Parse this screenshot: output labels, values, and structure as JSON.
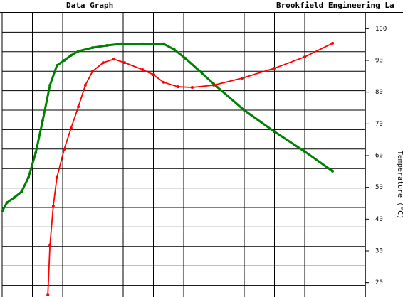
{
  "chart_data": {
    "type": "line",
    "title": "Data Graph",
    "subtitle": "Brookfield Engineering La",
    "y2label": "Temperature (°C)",
    "xlim": [
      0,
      12
    ],
    "y2lim": [
      15,
      105
    ],
    "y2ticks": [
      20,
      30,
      40,
      50,
      60,
      70,
      80,
      90,
      100
    ],
    "grid": true,
    "series": [
      {
        "color": "#008000",
        "axis": "y2",
        "x": [
          0,
          0.16,
          0.4,
          0.64,
          0.87,
          1.11,
          1.34,
          1.58,
          1.81,
          2.05,
          2.28,
          2.52,
          2.99,
          3.46,
          3.93,
          4.64,
          5.34,
          5.69,
          6.05,
          6.52,
          6.99,
          8.0,
          8.99,
          10.0,
          10.92
        ],
        "values": [
          42.5,
          45.2,
          46.8,
          48.6,
          53.1,
          60.9,
          71.0,
          82.2,
          88.4,
          90.0,
          91.6,
          92.9,
          94.0,
          94.7,
          95.2,
          95.2,
          95.2,
          93.4,
          90.7,
          86.7,
          82.6,
          74.3,
          67.6,
          61.3,
          55.1
        ]
      },
      {
        "color": "#ff0000",
        "axis": "y2",
        "x": [
          1.51,
          1.58,
          1.69,
          1.81,
          2.05,
          2.28,
          2.52,
          2.75,
          2.99,
          3.34,
          3.69,
          4.05,
          4.64,
          4.99,
          5.34,
          5.81,
          6.28,
          6.99,
          7.93,
          8.99,
          10.0,
          10.92
        ],
        "values": [
          16.1,
          31.8,
          44.1,
          53.1,
          62.0,
          68.7,
          75.4,
          82.2,
          86.6,
          89.3,
          90.4,
          89.3,
          87.1,
          85.5,
          83.1,
          81.7,
          81.5,
          82.2,
          84.4,
          87.5,
          91.1,
          95.4
        ]
      }
    ]
  }
}
